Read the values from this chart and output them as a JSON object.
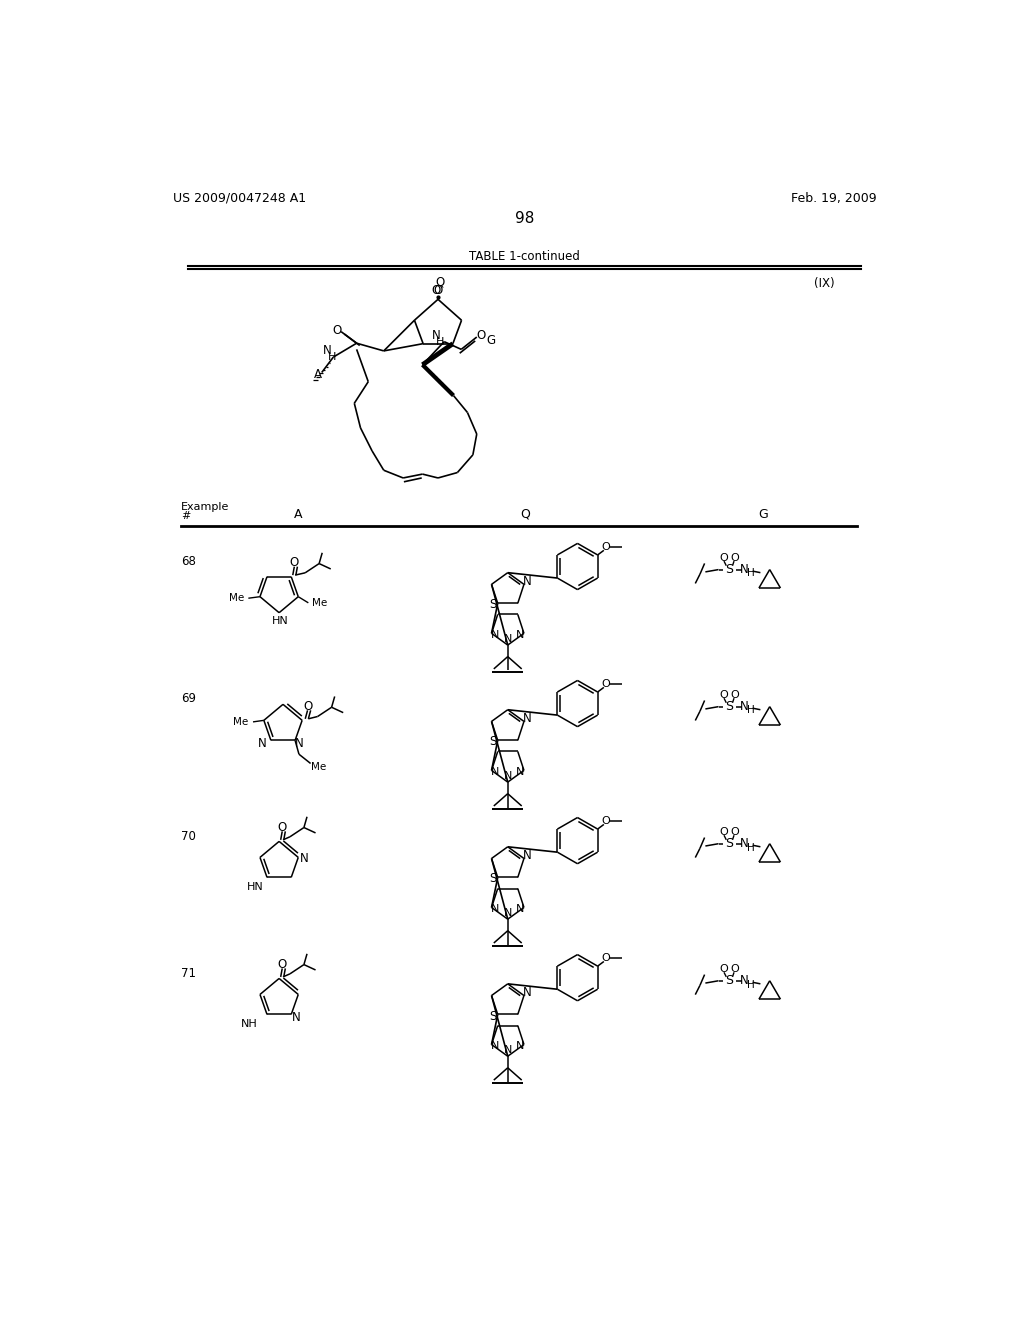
{
  "header_left": "US 2009/0047248 A1",
  "header_right": "Feb. 19, 2009",
  "page_number": "98",
  "table_title": "TABLE 1-continued",
  "formula_label": "(IX)",
  "background_color": "#ffffff"
}
